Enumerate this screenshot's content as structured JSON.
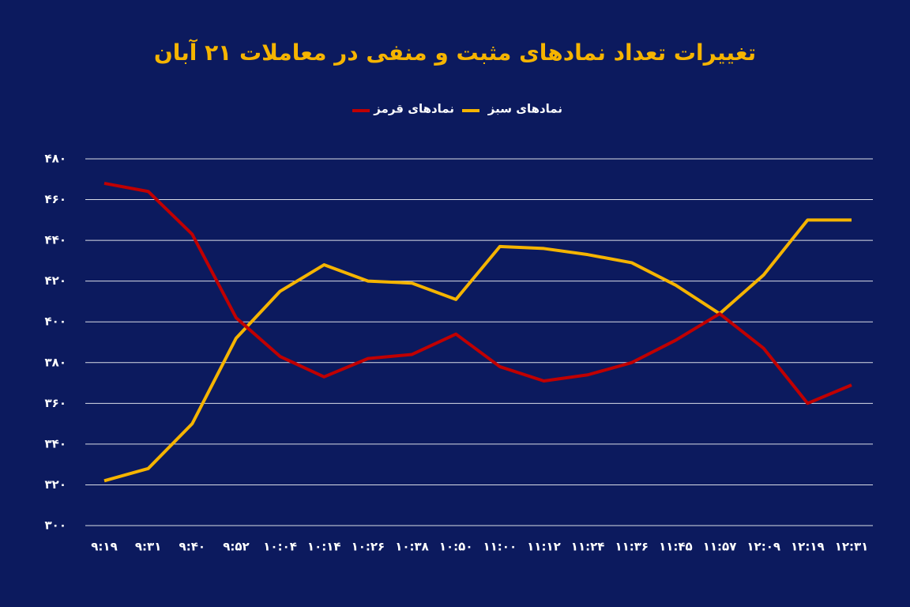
{
  "chart_data": {
    "type": "line",
    "title": "تغییرات تعداد نمادهای مثبت و منفی در معاملات ۲۱ آبان",
    "categories": [
      "۹:۱۹",
      "۹:۳۱",
      "۹:۴۰",
      "۹:۵۲",
      "۱۰:۰۴",
      "۱۰:۱۴",
      "۱۰:۲۶",
      "۱۰:۳۸",
      "۱۰:۵۰",
      "۱۱:۰۰",
      "۱۱:۱۲",
      "۱۱:۲۴",
      "۱۱:۳۶",
      "۱۱:۴۵",
      "۱۱:۵۷",
      "۱۲:۰۹",
      "۱۲:۱۹",
      "۱۲:۳۱"
    ],
    "series": [
      {
        "name": "نمادهای سبز",
        "color": "#f5b400",
        "values": [
          322,
          328,
          350,
          392,
          415,
          428,
          420,
          419,
          411,
          437,
          436,
          433,
          429,
          418,
          404,
          423,
          450,
          450
        ]
      },
      {
        "name": "نمادهای قرمز",
        "color": "#c00000",
        "values": [
          468,
          464,
          443,
          402,
          383,
          373,
          382,
          384,
          394,
          378,
          371,
          374,
          380,
          391,
          404,
          387,
          360,
          369
        ]
      }
    ],
    "ylim": [
      300,
      480
    ],
    "yticks": [
      {
        "value": 300,
        "label": "۳۰۰"
      },
      {
        "value": 320,
        "label": "۳۲۰"
      },
      {
        "value": 340,
        "label": "۳۴۰"
      },
      {
        "value": 360,
        "label": "۳۶۰"
      },
      {
        "value": 380,
        "label": "۳۸۰"
      },
      {
        "value": 400,
        "label": "۴۰۰"
      },
      {
        "value": 420,
        "label": "۴۲۰"
      },
      {
        "value": 440,
        "label": "۴۴۰"
      },
      {
        "value": 460,
        "label": "۴۶۰"
      },
      {
        "value": 480,
        "label": "۴۸۰"
      }
    ],
    "grid": true
  }
}
